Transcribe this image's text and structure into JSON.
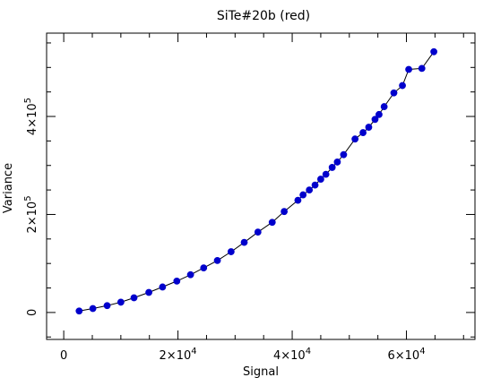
{
  "chart_data": {
    "type": "scatter",
    "title": "SiTe#20b (red)",
    "xlabel": "Signal",
    "ylabel": "Variance",
    "xlim": [
      -3000,
      72000
    ],
    "ylim": [
      -55000,
      570000
    ],
    "x_ticks": [
      {
        "value": 0,
        "label": "0",
        "mantissa": "",
        "exp": ""
      },
      {
        "value": 20000,
        "label": "",
        "mantissa": "2×10",
        "exp": "4"
      },
      {
        "value": 40000,
        "label": "",
        "mantissa": "4×10",
        "exp": "4"
      },
      {
        "value": 60000,
        "label": "",
        "mantissa": "6×10",
        "exp": "4"
      }
    ],
    "y_ticks": [
      {
        "value": 0,
        "label": "0",
        "mantissa": "",
        "exp": ""
      },
      {
        "value": 200000,
        "label": "",
        "mantissa": "2×10",
        "exp": "5"
      },
      {
        "value": 400000,
        "label": "",
        "mantissa": "4×10",
        "exp": "5"
      }
    ],
    "x_minor_step": 5000,
    "y_minor_step": 50000,
    "marker_color": "#0000cc",
    "line_color": "#000000",
    "grid": false,
    "points": [
      [
        2700,
        3000
      ],
      [
        5100,
        8000
      ],
      [
        7600,
        14000
      ],
      [
        10000,
        21000
      ],
      [
        12300,
        30000
      ],
      [
        14900,
        41000
      ],
      [
        17300,
        52000
      ],
      [
        19800,
        64000
      ],
      [
        22200,
        77000
      ],
      [
        24500,
        91000
      ],
      [
        26900,
        106000
      ],
      [
        29300,
        124000
      ],
      [
        31600,
        143000
      ],
      [
        34000,
        164000
      ],
      [
        36500,
        184000
      ],
      [
        38600,
        206000
      ],
      [
        41000,
        229000
      ],
      [
        41900,
        240000
      ],
      [
        43000,
        250000
      ],
      [
        44000,
        260000
      ],
      [
        45000,
        272000
      ],
      [
        45900,
        282000
      ],
      [
        47000,
        296000
      ],
      [
        47900,
        307000
      ],
      [
        49000,
        322000
      ],
      [
        51000,
        354000
      ],
      [
        52400,
        367000
      ],
      [
        53400,
        378000
      ],
      [
        54500,
        394000
      ],
      [
        55200,
        404000
      ],
      [
        56100,
        420000
      ],
      [
        57800,
        448000
      ],
      [
        59300,
        463000
      ],
      [
        60400,
        496000
      ],
      [
        62700,
        498000
      ],
      [
        64800,
        532000
      ]
    ]
  }
}
